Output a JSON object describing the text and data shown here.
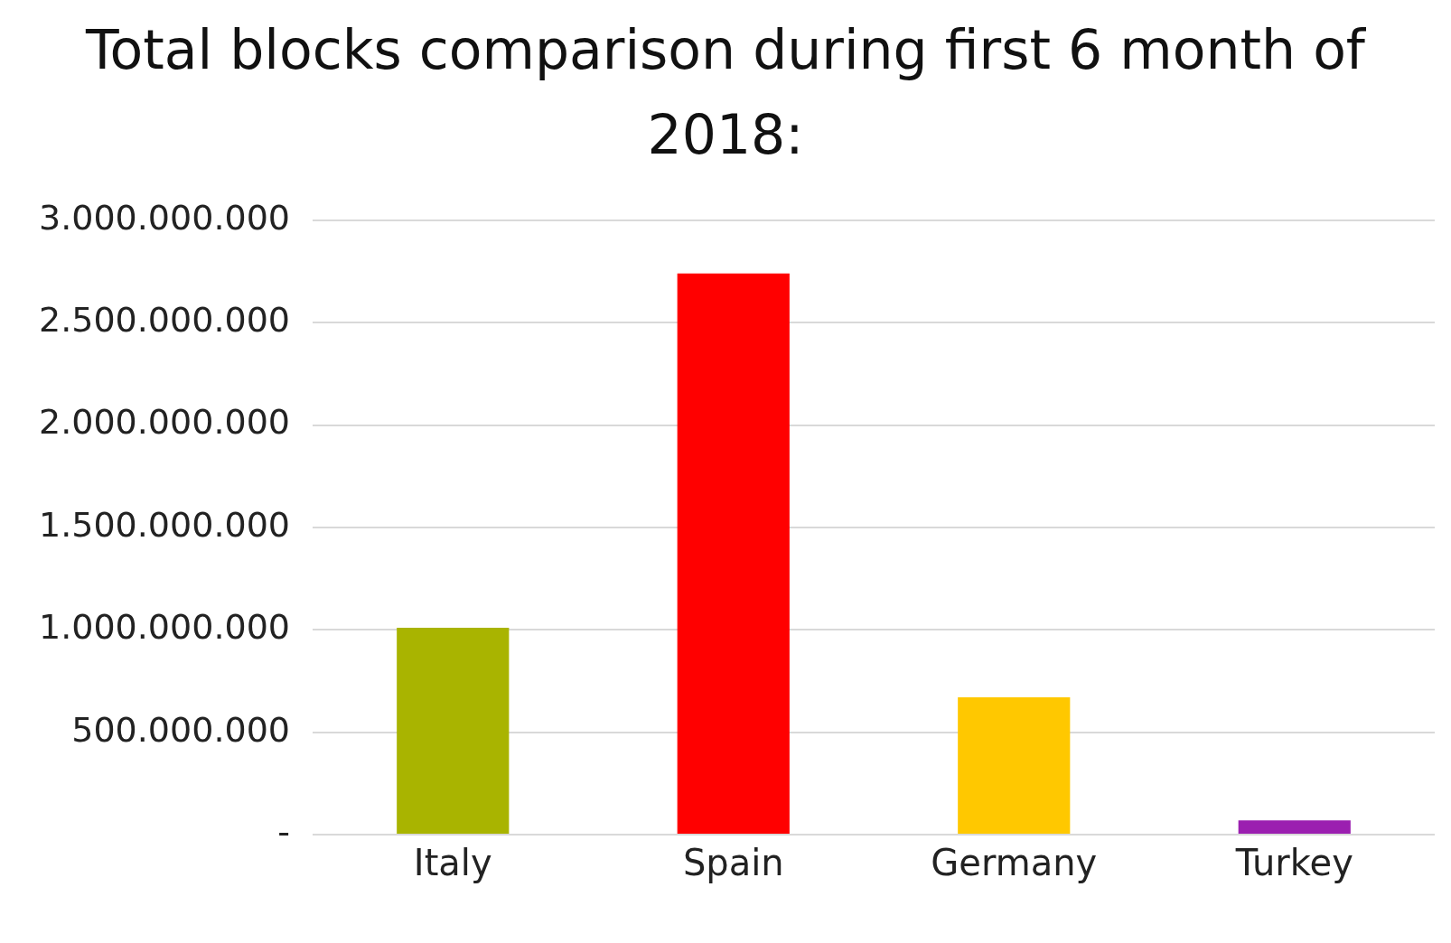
{
  "chart_data": {
    "type": "bar",
    "title": "Total blocks comparison during first 6 month of 2018:",
    "categories": [
      "Italy",
      "Spain",
      "Germany",
      "Turkey"
    ],
    "values": [
      1010000000,
      2740000000,
      670000000,
      70000000
    ],
    "colors": [
      "#a9b400",
      "#ff0000",
      "#ffc800",
      "#9b1fb0"
    ],
    "ylim": [
      0,
      3000000000
    ],
    "yticks": [
      {
        "value": 0,
        "label": "-"
      },
      {
        "value": 500000000,
        "label": "500.000.000"
      },
      {
        "value": 1000000000,
        "label": "1.000.000.000"
      },
      {
        "value": 1500000000,
        "label": "1.500.000.000"
      },
      {
        "value": 2000000000,
        "label": "2.000.000.000"
      },
      {
        "value": 2500000000,
        "label": "2.500.000.000"
      },
      {
        "value": 3000000000,
        "label": "3.000.000.000"
      }
    ],
    "grid": "y",
    "legend": false
  }
}
